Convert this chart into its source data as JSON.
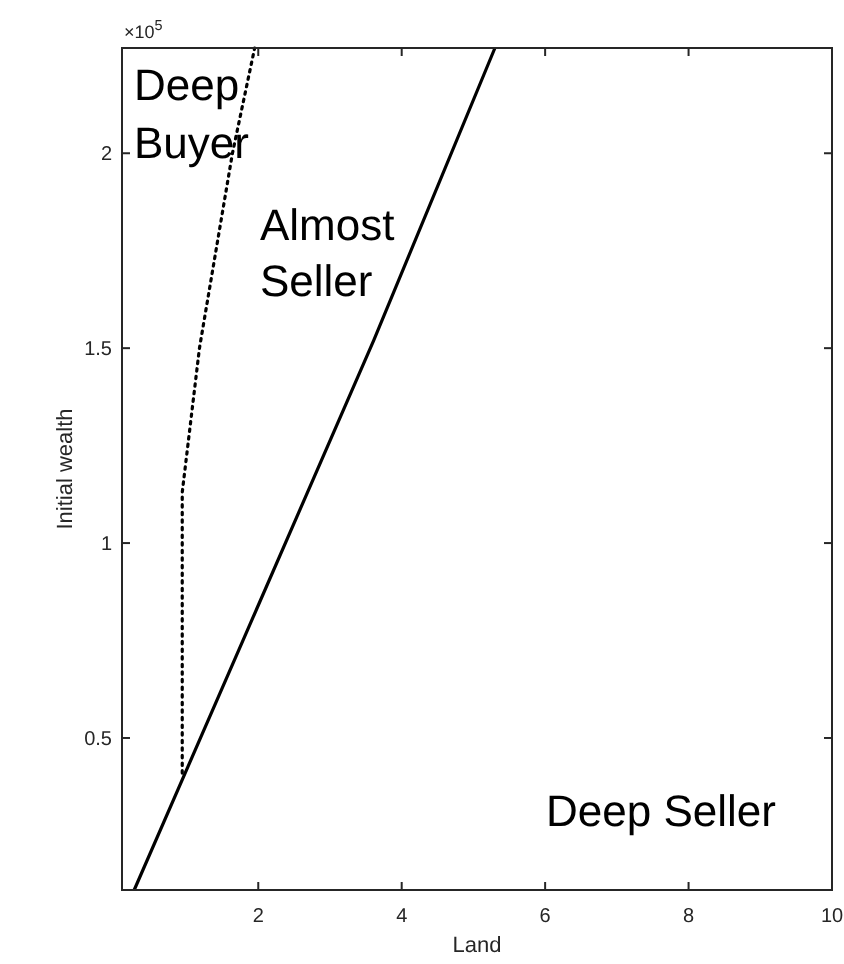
{
  "chart_data": {
    "type": "line",
    "xlabel": "Land",
    "ylabel": "Initial wealth",
    "xlim": [
      0.1,
      10
    ],
    "ylim": [
      0.11,
      2.27
    ],
    "xticks": [
      2,
      4,
      6,
      8,
      10
    ],
    "yticks": [
      0.5,
      1,
      1.5,
      2
    ],
    "series": [
      {
        "color": "#000000",
        "line_style": "solid",
        "x": [
          0.27,
          1.81,
          3.61,
          5.3
        ],
        "values": [
          0.11,
          0.76,
          1.52,
          2.27
        ]
      },
      {
        "color": "#000000",
        "line_style": "dotted",
        "x": [
          0.94,
          0.94,
          1.18,
          1.64,
          1.95
        ],
        "values": [
          0.41,
          1.13,
          1.5,
          2.0,
          2.27
        ]
      }
    ],
    "annotations": [
      "×10$^{5}$",
      "Deep\nBuyer",
      "Almost\nSeller",
      "Deep Seller"
    ]
  }
}
